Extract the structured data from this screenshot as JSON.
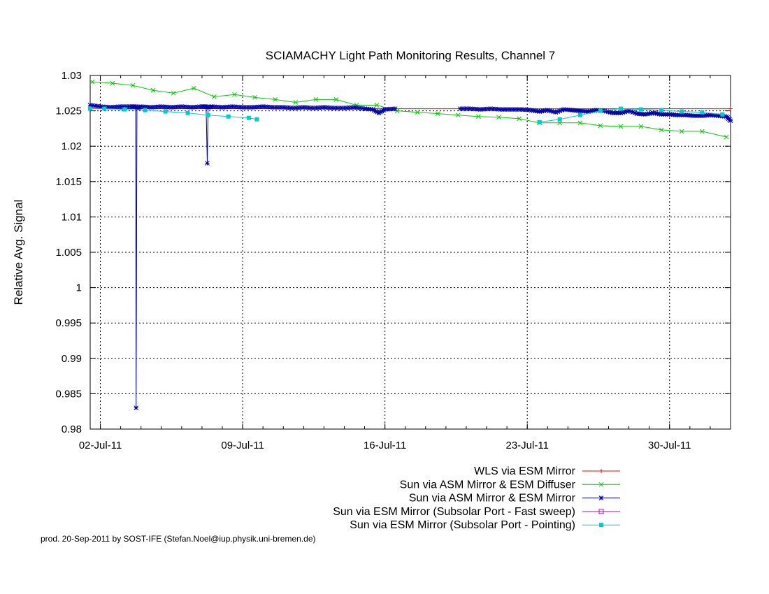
{
  "footer": "prod. 20-Sep-2011 by SOST-IFE (Stefan.Noel@iup.physik.uni-bremen.de)",
  "chart_data": {
    "type": "line",
    "title": "SCIAMACHY Light Path Monitoring Results, Channel 7",
    "xlabel": "",
    "ylabel": "Relative Avg. Signal",
    "x_unit": "date (July 2011, day of month)",
    "xlim": [
      1.5,
      33.0
    ],
    "ylim": [
      0.98,
      1.03
    ],
    "x_ticks": [
      {
        "x": 2,
        "label": "02-Jul-11"
      },
      {
        "x": 9,
        "label": "09-Jul-11"
      },
      {
        "x": 16,
        "label": "16-Jul-11"
      },
      {
        "x": 23,
        "label": "23-Jul-11"
      },
      {
        "x": 30,
        "label": "30-Jul-11"
      }
    ],
    "y_ticks": [
      {
        "y": 0.98,
        "label": "0.98"
      },
      {
        "y": 0.985,
        "label": "0.985"
      },
      {
        "y": 0.99,
        "label": "0.99"
      },
      {
        "y": 0.995,
        "label": "0.995"
      },
      {
        "y": 1.0,
        "label": "1"
      },
      {
        "y": 1.005,
        "label": "1.005"
      },
      {
        "y": 1.01,
        "label": "1.01"
      },
      {
        "y": 1.015,
        "label": "1.015"
      },
      {
        "y": 1.02,
        "label": "1.02"
      },
      {
        "y": 1.025,
        "label": "1.025"
      },
      {
        "y": 1.03,
        "label": "1.03"
      }
    ],
    "grid": true,
    "legend_position": "below plot, right-aligned",
    "series": [
      {
        "name": "WLS via ESM Mirror",
        "color": "#ff0000",
        "marker": "plus",
        "points": [
          [
            1.5,
            1.0253
          ],
          [
            33.0,
            1.0253
          ]
        ]
      },
      {
        "name": "Sun via ASM Mirror & ESM Diffuser",
        "color": "#00cc00",
        "marker": "cross",
        "points": [
          [
            1.6,
            1.0291
          ],
          [
            2.6,
            1.0289
          ],
          [
            3.6,
            1.0286
          ],
          [
            4.6,
            1.0279
          ],
          [
            5.6,
            1.0275
          ],
          [
            6.6,
            1.0282
          ],
          [
            7.6,
            1.027
          ],
          [
            8.6,
            1.0273
          ],
          [
            9.6,
            1.0269
          ],
          [
            10.6,
            1.0266
          ],
          [
            11.6,
            1.0262
          ],
          [
            12.6,
            1.0266
          ],
          [
            13.6,
            1.0266
          ],
          [
            14.6,
            1.0258
          ],
          [
            15.6,
            1.0258
          ],
          [
            16.6,
            1.025
          ],
          [
            17.6,
            1.0248
          ],
          [
            18.6,
            1.0246
          ],
          [
            19.6,
            1.0244
          ],
          [
            20.6,
            1.0242
          ],
          [
            21.6,
            1.0241
          ],
          [
            22.6,
            1.0239
          ],
          [
            23.6,
            1.0233
          ],
          [
            24.6,
            1.0233
          ],
          [
            25.6,
            1.0233
          ],
          [
            26.6,
            1.0229
          ],
          [
            27.6,
            1.0228
          ],
          [
            28.6,
            1.0228
          ],
          [
            29.6,
            1.0223
          ],
          [
            30.6,
            1.0221
          ],
          [
            31.6,
            1.0221
          ],
          [
            32.8,
            1.0213
          ]
        ]
      },
      {
        "name": "Sun via ASM Mirror & ESM Mirror",
        "color": "#0000aa",
        "marker": "star",
        "points": [
          [
            1.5,
            1.0258
          ],
          [
            2.0,
            1.0256
          ],
          [
            2.5,
            1.0255
          ],
          [
            3.0,
            1.0256
          ],
          [
            3.5,
            1.0256
          ],
          [
            3.74,
            1.0256
          ],
          [
            3.76,
            0.983
          ],
          [
            3.8,
            1.0254
          ],
          [
            4.0,
            1.0256
          ],
          [
            4.5,
            1.0255
          ],
          [
            5.0,
            1.0256
          ],
          [
            5.5,
            1.0255
          ],
          [
            6.0,
            1.0256
          ],
          [
            6.5,
            1.0255
          ],
          [
            7.0,
            1.0256
          ],
          [
            7.2,
            1.0256
          ],
          [
            7.26,
            1.0176
          ],
          [
            7.3,
            1.0255
          ],
          [
            7.5,
            1.0256
          ],
          [
            8.0,
            1.0255
          ],
          [
            8.5,
            1.0256
          ],
          [
            9.0,
            1.0255
          ],
          [
            9.5,
            1.0255
          ],
          [
            10.0,
            1.0256
          ],
          [
            10.5,
            1.0255
          ],
          [
            11.0,
            1.0255
          ],
          [
            11.5,
            1.0254
          ],
          [
            12.0,
            1.0255
          ],
          [
            12.5,
            1.0254
          ],
          [
            13.0,
            1.0255
          ],
          [
            13.5,
            1.0254
          ],
          [
            14.0,
            1.0254
          ],
          [
            14.5,
            1.0255
          ],
          [
            15.0,
            1.0253
          ],
          [
            15.4,
            1.0252
          ],
          [
            15.7,
            1.0247
          ],
          [
            16.0,
            1.0252
          ],
          [
            16.5,
            1.0253
          ],
          null,
          [
            19.7,
            1.0253
          ],
          [
            20.2,
            1.0253
          ],
          [
            20.7,
            1.0252
          ],
          [
            21.2,
            1.0253
          ],
          [
            21.7,
            1.0252
          ],
          [
            22.2,
            1.0252
          ],
          [
            22.7,
            1.0252
          ],
          [
            23.2,
            1.0251
          ],
          [
            23.6,
            1.0249
          ],
          [
            24.0,
            1.0251
          ],
          [
            24.4,
            1.0248
          ],
          [
            24.8,
            1.0252
          ],
          [
            25.2,
            1.0251
          ],
          [
            25.6,
            1.025
          ],
          [
            26.0,
            1.0249
          ],
          [
            26.4,
            1.0251
          ],
          [
            26.8,
            1.025
          ],
          [
            27.2,
            1.0247
          ],
          [
            27.6,
            1.0247
          ],
          [
            28.0,
            1.025
          ],
          [
            28.4,
            1.0246
          ],
          [
            28.8,
            1.0245
          ],
          [
            29.2,
            1.0247
          ],
          [
            29.6,
            1.0245
          ],
          [
            30.0,
            1.0245
          ],
          [
            30.4,
            1.0244
          ],
          [
            30.8,
            1.0244
          ],
          [
            31.2,
            1.0243
          ],
          [
            31.6,
            1.0243
          ],
          [
            32.0,
            1.0244
          ],
          [
            32.4,
            1.0243
          ],
          [
            32.8,
            1.0242
          ],
          [
            33.0,
            1.0236
          ]
        ]
      },
      {
        "name": "Sun via ESM Mirror (Subsolar Port - Fast sweep)",
        "color": "#cc00cc",
        "marker": "square",
        "points": []
      },
      {
        "name": "Sun via ESM Mirror (Subsolar Port - Pointing)",
        "color": "#00cccc",
        "marker": "filled-square",
        "points": [
          [
            1.5,
            1.0253
          ],
          [
            2.2,
            1.0253
          ],
          [
            3.2,
            1.0252
          ],
          [
            4.2,
            1.0251
          ],
          [
            5.2,
            1.0249
          ],
          [
            6.3,
            1.0247
          ],
          [
            7.3,
            1.0244
          ],
          [
            8.3,
            1.0242
          ],
          [
            9.3,
            1.024
          ],
          [
            9.7,
            1.0238
          ],
          null,
          [
            23.6,
            1.0234
          ],
          [
            24.6,
            1.0238
          ],
          [
            25.6,
            1.0244
          ],
          [
            26.6,
            1.025
          ],
          [
            27.6,
            1.0253
          ],
          [
            28.6,
            1.0252
          ],
          [
            29.6,
            1.0251
          ],
          [
            30.6,
            1.0249
          ],
          [
            31.6,
            1.0248
          ],
          [
            32.6,
            1.0245
          ]
        ]
      }
    ]
  }
}
